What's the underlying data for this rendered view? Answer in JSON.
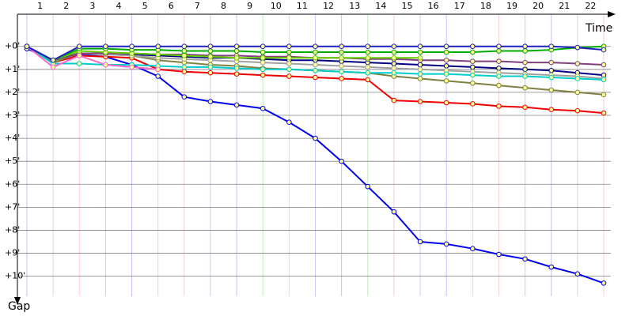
{
  "chart_data": {
    "type": "line",
    "x_label": "Time",
    "y_label": "Gap",
    "categories": [
      null,
      "1",
      "2",
      "3",
      "4",
      "5",
      "6",
      "7",
      "8",
      "9",
      "10",
      "11",
      "12",
      "13",
      "14",
      "15",
      "16",
      "17",
      "18",
      "19",
      "20",
      "21",
      "22"
    ],
    "ylim": [
      -1.4,
      10.7
    ],
    "yticks": [
      {
        "value": 0,
        "label": "+0'"
      },
      {
        "value": 1,
        "label": "+1'"
      },
      {
        "value": 2,
        "label": "+2'"
      },
      {
        "value": 3,
        "label": "+3'"
      },
      {
        "value": 4,
        "label": "+4'"
      },
      {
        "value": 5,
        "label": "+5'"
      },
      {
        "value": 6,
        "label": "+6'"
      },
      {
        "value": 7,
        "label": "+7'"
      },
      {
        "value": 8,
        "label": "+8'"
      },
      {
        "value": 9,
        "label": "+9'"
      },
      {
        "value": 10,
        "label": "+10'"
      }
    ],
    "grid": true,
    "series": [
      {
        "color": "#0000ee",
        "values": [
          0.1,
          0.6,
          0.35,
          0.45,
          0.8,
          1.3,
          2.2,
          2.4,
          2.55,
          2.7,
          3.3,
          4.0,
          5.0,
          6.1,
          7.2,
          8.5,
          8.6,
          8.8,
          9.05,
          9.25,
          9.6,
          9.9,
          10.3
        ]
      },
      {
        "color": "#ee0000",
        "values": [
          0,
          0.7,
          0.4,
          0.45,
          0.5,
          1.0,
          1.1,
          1.15,
          1.2,
          1.25,
          1.3,
          1.35,
          1.4,
          1.45,
          2.35,
          2.4,
          2.45,
          2.5,
          2.6,
          2.65,
          2.75,
          2.8,
          2.9
        ]
      },
      {
        "color": "#808040",
        "values": [
          0,
          0.7,
          0.3,
          0.35,
          0.4,
          0.6,
          0.7,
          0.8,
          0.85,
          0.95,
          1.0,
          1.05,
          1.1,
          1.15,
          1.3,
          1.4,
          1.5,
          1.6,
          1.7,
          1.8,
          1.9,
          2.0,
          2.1
        ]
      },
      {
        "color": "#000080",
        "values": [
          0,
          0.6,
          0.3,
          0.3,
          0.35,
          0.4,
          0.45,
          0.5,
          0.5,
          0.55,
          0.6,
          0.6,
          0.65,
          0.7,
          0.75,
          0.8,
          0.85,
          0.9,
          0.95,
          1.0,
          1.05,
          1.15,
          1.25
        ]
      },
      {
        "color": "#a0a0a0",
        "values": [
          0,
          0.6,
          0.3,
          0.35,
          0.4,
          0.5,
          0.55,
          0.6,
          0.65,
          0.7,
          0.75,
          0.8,
          0.85,
          0.9,
          0.95,
          1.0,
          1.05,
          1.1,
          1.15,
          1.2,
          1.25,
          1.3,
          1.4
        ]
      },
      {
        "color": "#804080",
        "values": [
          0,
          0.6,
          0.3,
          0.3,
          0.3,
          0.35,
          0.35,
          0.4,
          0.4,
          0.45,
          0.45,
          0.5,
          0.5,
          0.55,
          0.55,
          0.6,
          0.6,
          0.65,
          0.65,
          0.7,
          0.7,
          0.75,
          0.8
        ]
      },
      {
        "color": "#00cccc",
        "values": [
          0,
          0.75,
          0.75,
          0.8,
          0.8,
          0.85,
          0.9,
          0.9,
          0.95,
          1.0,
          1.0,
          1.05,
          1.1,
          1.15,
          1.15,
          1.2,
          1.2,
          1.25,
          1.3,
          1.3,
          1.35,
          1.4,
          1.45
        ]
      },
      {
        "color": "#66cc00",
        "values": [
          0,
          0.6,
          0.2,
          0.25,
          0.3,
          0.35,
          0.4,
          0.45,
          0.5,
          0.5,
          0.5,
          0.5,
          0.5,
          0.5,
          0.5,
          0.5,
          null,
          null,
          null,
          null,
          null,
          null,
          null
        ]
      },
      {
        "color": "#ff66cc",
        "values": [
          0,
          0.9,
          0.4,
          0.8,
          0.9,
          1.0,
          null,
          null,
          null,
          null,
          null,
          null,
          null,
          null,
          null,
          null,
          null,
          null,
          null,
          null,
          null,
          null,
          null
        ]
      },
      {
        "color": "#00aa00",
        "values": [
          0,
          0.6,
          0.1,
          0.1,
          0.15,
          0.15,
          0.2,
          0.2,
          0.2,
          0.25,
          0.25,
          0.25,
          0.25,
          0.25,
          0.25,
          0.25,
          0.25,
          0.25,
          0.2,
          0.2,
          0.15,
          0.05,
          0.0
        ]
      },
      {
        "color": "#2020c0",
        "values": [
          0,
          0.6,
          0,
          0,
          0,
          0,
          0,
          0,
          0,
          0,
          0,
          0,
          0,
          0,
          0,
          0,
          0,
          0,
          0,
          0,
          0,
          0.05,
          0.15
        ]
      }
    ]
  }
}
